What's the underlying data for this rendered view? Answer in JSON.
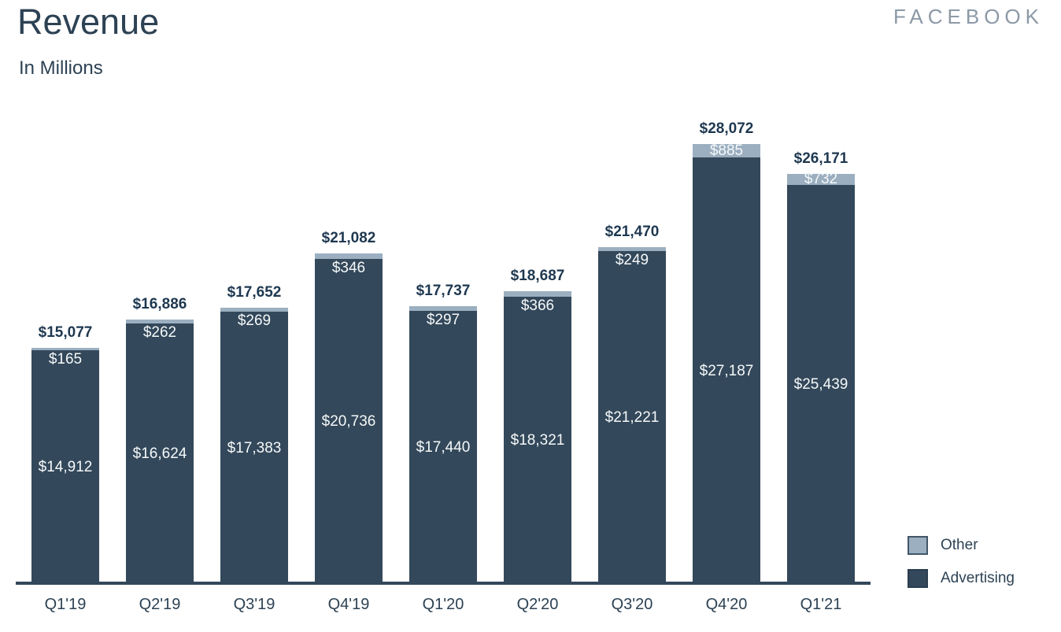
{
  "header": {
    "title": "Revenue",
    "subtitle": "In Millions",
    "brand": "FACEBOOK"
  },
  "legend": {
    "items": [
      {
        "label": "Other",
        "color": "#9BAFC0"
      },
      {
        "label": "Advertising",
        "color": "#33485A"
      }
    ],
    "position": "bottom-right"
  },
  "colors": {
    "advertising": "#33485A",
    "other": "#9BAFC0",
    "axis": "#33485A",
    "total_label": "#1E3850",
    "inside_label": "#F6F9FA",
    "brand": "#8C99A6"
  },
  "chart_data": {
    "type": "bar",
    "stacked": true,
    "title": "Revenue",
    "subtitle": "In Millions",
    "unit": "USD millions",
    "categories": [
      "Q1'19",
      "Q2'19",
      "Q3'19",
      "Q4'19",
      "Q1'20",
      "Q2'20",
      "Q3'20",
      "Q4'20",
      "Q1'21"
    ],
    "series": [
      {
        "name": "Advertising",
        "color": "#33485A",
        "values": [
          14912,
          16624,
          17383,
          20736,
          17440,
          18321,
          21221,
          27187,
          25439
        ]
      },
      {
        "name": "Other",
        "color": "#9BAFC0",
        "values": [
          165,
          262,
          269,
          346,
          297,
          366,
          249,
          885,
          732
        ]
      }
    ],
    "totals": [
      15077,
      16886,
      17652,
      21082,
      17737,
      18687,
      21470,
      28072,
      26171
    ],
    "labels": {
      "totals": [
        "$15,077",
        "$16,886",
        "$17,652",
        "$21,082",
        "$17,737",
        "$18,687",
        "$21,470",
        "$28,072",
        "$26,171"
      ],
      "advertising": [
        "$14,912",
        "$16,624",
        "$17,383",
        "$20,736",
        "$17,440",
        "$18,321",
        "$21,221",
        "$27,187",
        "$25,439"
      ],
      "other": [
        "$165",
        "$262",
        "$269",
        "$346",
        "$297",
        "$366",
        "$249",
        "$885",
        "$732"
      ]
    },
    "ylim": [
      0,
      30000
    ],
    "grid": false,
    "legend_position": "bottom-right"
  }
}
